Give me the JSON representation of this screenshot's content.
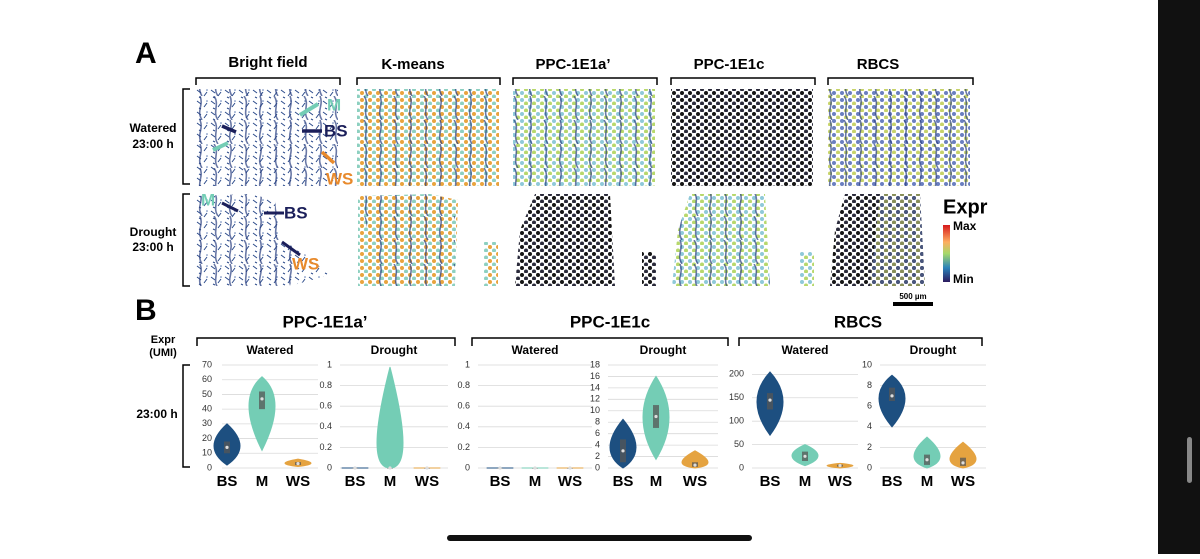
{
  "panel_a": {
    "label": "A",
    "columns": [
      "Bright field",
      "K-means",
      "PPC-1E1a’",
      "PPC-1E1c",
      "RBCS"
    ],
    "rows": [
      [
        "Watered",
        "23:00 h"
      ],
      [
        "Drought",
        "23:00 h"
      ]
    ],
    "annotations": {
      "watered": {
        "m": "M",
        "bs": "BS",
        "ws": "WS"
      },
      "drought": {
        "m": "M",
        "bs": "BS",
        "ws": "WS"
      }
    },
    "legend": {
      "title": "Expr",
      "max": "Max",
      "min": "Min"
    },
    "scale_bar": "500 µm"
  },
  "panel_b": {
    "label": "B",
    "y_axis_label": [
      "Expr",
      "(UMI)"
    ],
    "row_label": "23:00 h",
    "groups": [
      "PPC-1E1a’",
      "PPC-1E1c",
      "RBCS"
    ]
  },
  "chart_data": [
    {
      "type": "violin",
      "title": "Watered",
      "categories": [
        "BS",
        "M",
        "WS"
      ],
      "colors": [
        "#1d4f80",
        "#74cdb5",
        "#e5a340"
      ],
      "min": [
        2,
        12,
        1
      ],
      "q1": [
        10,
        40,
        2
      ],
      "median": [
        14,
        47,
        3
      ],
      "q3": [
        18,
        52,
        4
      ],
      "max": [
        30,
        62,
        6
      ],
      "ylim": [
        0,
        70
      ],
      "yticks": [
        0,
        10,
        20,
        30,
        40,
        50,
        60,
        70
      ],
      "grid": true
    },
    {
      "type": "violin",
      "title": "Drought",
      "categories": [
        "BS",
        "M",
        "WS"
      ],
      "colors": [
        "#1d4f80",
        "#74cdb5",
        "#e5a340"
      ],
      "min": [
        0,
        0,
        0
      ],
      "q1": [
        0,
        0,
        0
      ],
      "median": [
        0,
        0,
        0
      ],
      "q3": [
        0,
        0,
        0
      ],
      "max": [
        0,
        0.98,
        0
      ],
      "ylim": [
        0,
        1
      ],
      "yticks": [
        0,
        0.2,
        0.4,
        0.6,
        0.8,
        1
      ],
      "grid": true
    },
    {
      "type": "violin",
      "title": "Watered",
      "categories": [
        "BS",
        "M",
        "WS"
      ],
      "colors": [
        "#1d4f80",
        "#74cdb5",
        "#e5a340"
      ],
      "min": [
        0,
        0,
        0
      ],
      "q1": [
        0,
        0,
        0
      ],
      "median": [
        0,
        0,
        0
      ],
      "q3": [
        0,
        0,
        0
      ],
      "max": [
        0,
        0,
        0
      ],
      "ylim": [
        0,
        1
      ],
      "yticks": [
        0,
        0.2,
        0.4,
        0.6,
        0.8,
        1
      ],
      "grid": true
    },
    {
      "type": "violin",
      "title": "Drought",
      "categories": [
        "BS",
        "M",
        "WS"
      ],
      "colors": [
        "#1d4f80",
        "#74cdb5",
        "#e5a340"
      ],
      "min": [
        0,
        1.5,
        0
      ],
      "q1": [
        1,
        7,
        0.2
      ],
      "median": [
        3,
        9,
        0.5
      ],
      "q3": [
        5,
        11,
        1
      ],
      "max": [
        8.5,
        16,
        3
      ],
      "ylim": [
        0,
        18
      ],
      "yticks": [
        0,
        2,
        4,
        6,
        8,
        10,
        12,
        14,
        16,
        18
      ],
      "grid": true
    },
    {
      "type": "violin",
      "title": "Watered",
      "categories": [
        "BS",
        "M",
        "WS"
      ],
      "colors": [
        "#1d4f80",
        "#74cdb5",
        "#e5a340"
      ],
      "min": [
        70,
        5,
        0
      ],
      "q1": [
        125,
        15,
        3
      ],
      "median": [
        145,
        25,
        5
      ],
      "q3": [
        160,
        35,
        7
      ],
      "max": [
        205,
        50,
        10
      ],
      "ylim": [
        0,
        220
      ],
      "yticks": [
        0,
        50,
        100,
        150,
        200
      ],
      "grid": true
    },
    {
      "type": "violin",
      "title": "Drought",
      "categories": [
        "BS",
        "M",
        "WS"
      ],
      "colors": [
        "#1d4f80",
        "#74cdb5",
        "#e5a340"
      ],
      "min": [
        4,
        0,
        0
      ],
      "q1": [
        6.5,
        0.3,
        0.2
      ],
      "median": [
        7,
        0.8,
        0.5
      ],
      "q3": [
        7.8,
        1.3,
        1
      ],
      "max": [
        9,
        3,
        2.5
      ],
      "ylim": [
        0,
        10
      ],
      "yticks": [
        0,
        2,
        4,
        6,
        8,
        10
      ],
      "grid": true
    }
  ]
}
